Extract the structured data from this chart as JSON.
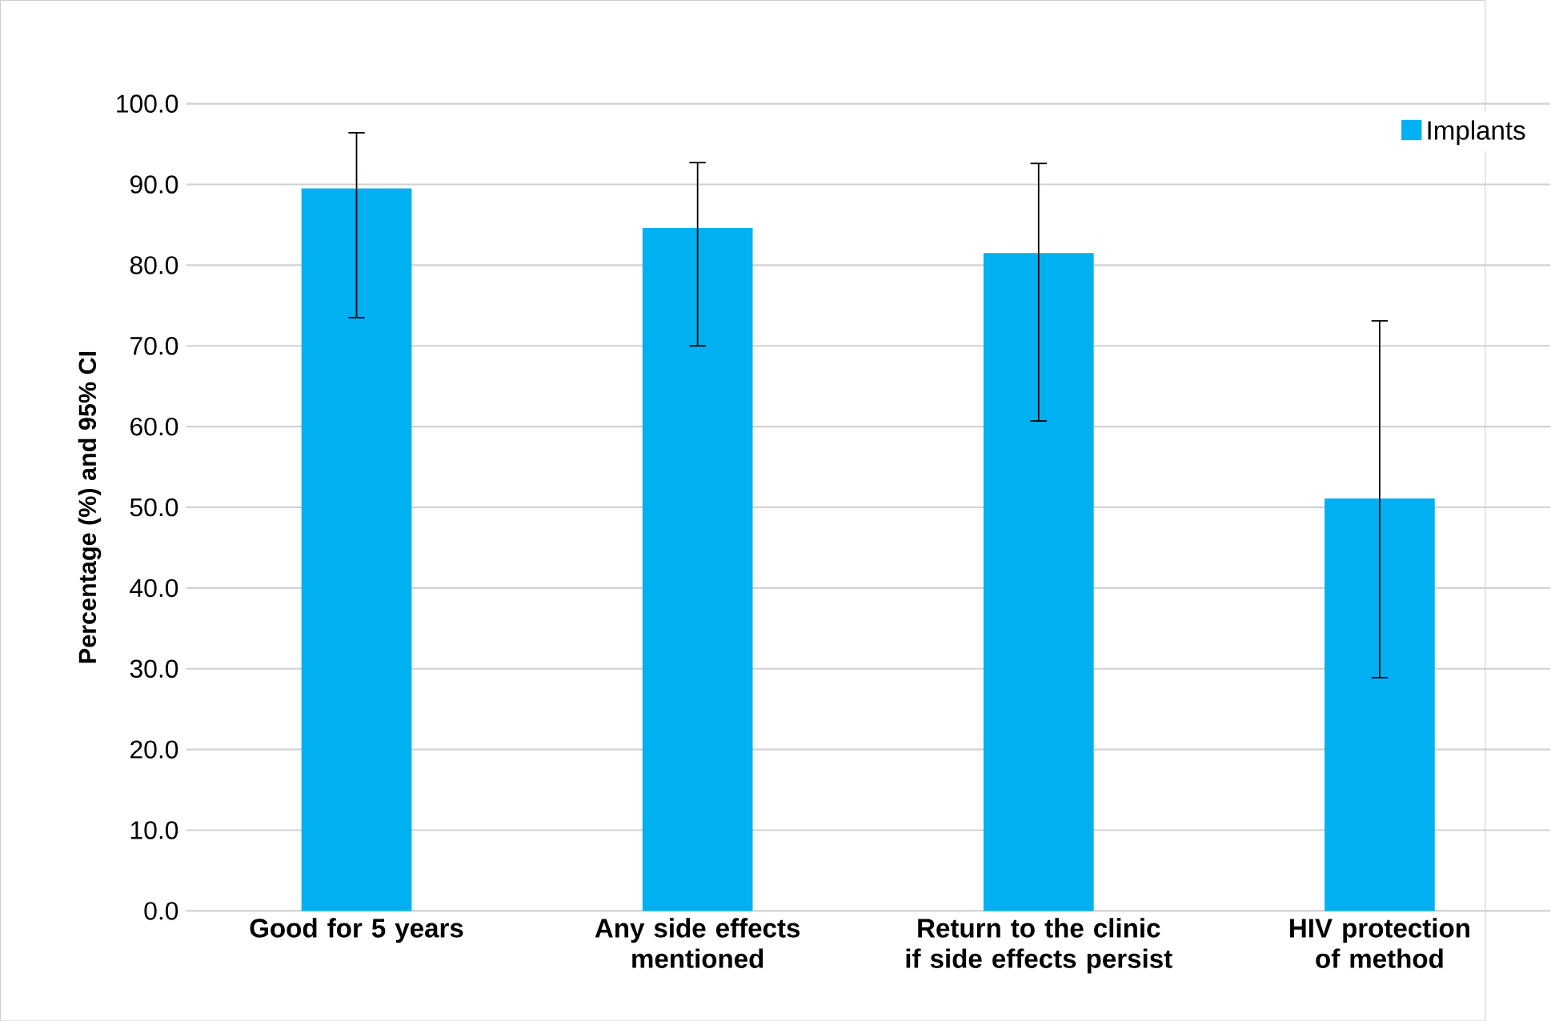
{
  "chart_data": {
    "type": "bar",
    "ylabel": "Percentage (%) and 95% CI",
    "categories": [
      "Good for 5 years",
      "Any side effects mentioned",
      "Return to the clinic if side effects persist",
      "HIV protection of method"
    ],
    "series": [
      {
        "name": "Implants",
        "color": "#00b0f0",
        "values": [
          89.5,
          84.6,
          81.5,
          51.1
        ],
        "errors": [
          [
            73.5,
            96.4
          ],
          [
            70.0,
            92.7
          ],
          [
            60.7,
            92.6
          ],
          [
            28.9,
            73.1
          ]
        ]
      }
    ],
    "ylim": [
      0,
      100
    ],
    "yticks": [
      {
        "value": 0,
        "label": "0.0"
      },
      {
        "value": 10,
        "label": "10.0"
      },
      {
        "value": 20,
        "label": "20.0"
      },
      {
        "value": 30,
        "label": "30.0"
      },
      {
        "value": 40,
        "label": "40.0"
      },
      {
        "value": 50,
        "label": "50.0"
      },
      {
        "value": 60,
        "label": "60.0"
      },
      {
        "value": 70,
        "label": "70.0"
      },
      {
        "value": 80,
        "label": "80.0"
      },
      {
        "value": 90,
        "label": "90.0"
      },
      {
        "value": 100,
        "label": "100.0"
      }
    ],
    "grid": "y",
    "legend": "top right"
  }
}
